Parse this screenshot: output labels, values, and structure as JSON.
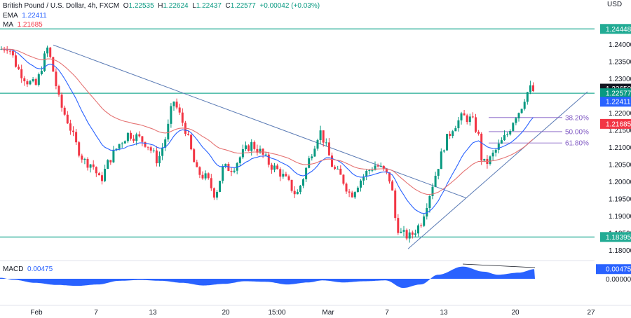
{
  "header": {
    "symbol": "British Pound / U.S. Dollar, 4h, FXCM",
    "o_label": "O",
    "o": "1.22535",
    "h_label": "H",
    "h": "1.22624",
    "l_label": "L",
    "l": "1.22437",
    "c_label": "C",
    "c": "1.22577",
    "change": "+0.00042 (+0.03%)",
    "ema_label": "EMA",
    "ema_value": "1.22411",
    "ma_label": "MA",
    "ma_value": "1.21685",
    "currency": "USD"
  },
  "macd": {
    "label": "MACD",
    "value": "0.00475"
  },
  "colors": {
    "up": "#089981",
    "down": "#f23645",
    "ema": "#2962ff",
    "ma": "#e57373",
    "level": "#22ab94",
    "trend": "#5b7bb5",
    "fib": "#7e57c2",
    "macd": "#2962ff"
  },
  "chart_data": {
    "type": "candlestick",
    "ylim": [
      1.1775,
      1.248
    ],
    "price_ticks": [
      "1.24000",
      "1.23500",
      "1.23000",
      "1.22500",
      "1.22000",
      "1.21500",
      "1.21000",
      "1.20500",
      "1.20000",
      "1.19500",
      "1.19000",
      "1.18500",
      "1.18000"
    ],
    "x_ticks": [
      "Feb",
      "7",
      "13",
      "20",
      "15:00",
      "Mar",
      "7",
      "13",
      "20",
      "27"
    ],
    "levels": [
      1.24448,
      1.22577,
      1.18395
    ],
    "price_labels": [
      {
        "text": "1.24448",
        "value": 1.24448,
        "kind": "level"
      },
      {
        "text": "1.22650",
        "value": 1.2265,
        "kind": "dark"
      },
      {
        "text": "1.22577",
        "value": 1.22577,
        "kind": "close"
      },
      {
        "text": "1.22411",
        "value": 1.22411,
        "kind": "ema"
      },
      {
        "text": "1.21685",
        "value": 1.21685,
        "kind": "ma"
      },
      {
        "text": "1.18395",
        "value": 1.18395,
        "kind": "level"
      }
    ],
    "fib_levels": [
      {
        "label": "38.20%",
        "value": 1.2187
      },
      {
        "label": "50.00%",
        "value": 1.2146
      },
      {
        "label": "61.80%",
        "value": 1.2113
      }
    ],
    "macd_ticks": [
      "0.00000"
    ],
    "macd_last": "0.00475",
    "anchors": [
      [
        0,
        1.2385
      ],
      [
        12,
        1.2395
      ],
      [
        25,
        1.233
      ],
      [
        40,
        1.229
      ],
      [
        52,
        1.228
      ],
      [
        60,
        1.234
      ],
      [
        68,
        1.239
      ],
      [
        75,
        1.233
      ],
      [
        85,
        1.223
      ],
      [
        98,
        1.217
      ],
      [
        108,
        1.211
      ],
      [
        120,
        1.206
      ],
      [
        132,
        1.205
      ],
      [
        143,
        1.2
      ],
      [
        155,
        1.206
      ],
      [
        170,
        1.211
      ],
      [
        183,
        1.214
      ],
      [
        196,
        1.213
      ],
      [
        210,
        1.211
      ],
      [
        225,
        1.206
      ],
      [
        238,
        1.214
      ],
      [
        247,
        1.224
      ],
      [
        255,
        1.22
      ],
      [
        265,
        1.215
      ],
      [
        280,
        1.203
      ],
      [
        295,
        1.201
      ],
      [
        307,
        1.196
      ],
      [
        318,
        1.204
      ],
      [
        332,
        1.204
      ],
      [
        345,
        1.208
      ],
      [
        358,
        1.211
      ],
      [
        370,
        1.209
      ],
      [
        385,
        1.205
      ],
      [
        398,
        1.203
      ],
      [
        410,
        1.2
      ],
      [
        423,
        1.196
      ],
      [
        432,
        1.201
      ],
      [
        445,
        1.209
      ],
      [
        456,
        1.215
      ],
      [
        462,
        1.212
      ],
      [
        475,
        1.204
      ],
      [
        488,
        1.201
      ],
      [
        500,
        1.196
      ],
      [
        512,
        1.2
      ],
      [
        524,
        1.203
      ],
      [
        536,
        1.205
      ],
      [
        548,
        1.203
      ],
      [
        558,
        1.2
      ],
      [
        563,
        1.19
      ],
      [
        570,
        1.185
      ],
      [
        585,
        1.184
      ],
      [
        600,
        1.188
      ],
      [
        612,
        1.196
      ],
      [
        624,
        1.204
      ],
      [
        634,
        1.211
      ],
      [
        646,
        1.216
      ],
      [
        660,
        1.219
      ],
      [
        673,
        1.218
      ],
      [
        682,
        1.214
      ],
      [
        688,
        1.205
      ],
      [
        697,
        1.206
      ],
      [
        710,
        1.21
      ],
      [
        724,
        1.214
      ],
      [
        734,
        1.219
      ],
      [
        742,
        1.221
      ],
      [
        750,
        1.2255
      ],
      [
        757,
        1.2272
      ],
      [
        763,
        1.2258
      ]
    ],
    "macd_anchors": [
      [
        0,
        0.0005
      ],
      [
        20,
        -0.0005
      ],
      [
        50,
        -0.002
      ],
      [
        80,
        -0.003
      ],
      [
        110,
        -0.0035
      ],
      [
        140,
        -0.0028
      ],
      [
        170,
        -0.001
      ],
      [
        200,
        -0.0006
      ],
      [
        230,
        -0.001
      ],
      [
        260,
        -0.002
      ],
      [
        290,
        -0.0033
      ],
      [
        320,
        -0.0025
      ],
      [
        350,
        -0.0012
      ],
      [
        380,
        -0.0015
      ],
      [
        410,
        -0.0028
      ],
      [
        440,
        -0.0018
      ],
      [
        460,
        -0.0008
      ],
      [
        490,
        -0.0018
      ],
      [
        520,
        -0.0012
      ],
      [
        550,
        -0.0008
      ],
      [
        575,
        -0.0045
      ],
      [
        600,
        -0.0028
      ],
      [
        625,
        0.002
      ],
      [
        660,
        0.006
      ],
      [
        690,
        0.0035
      ],
      [
        710,
        0.002
      ],
      [
        740,
        0.003
      ],
      [
        763,
        0.00475
      ]
    ]
  }
}
